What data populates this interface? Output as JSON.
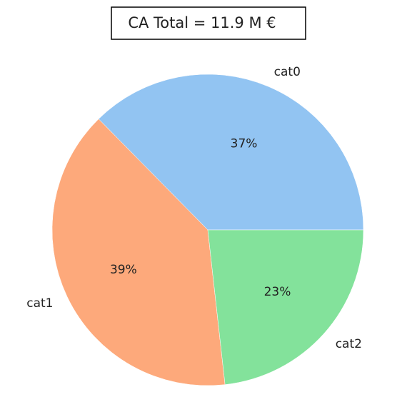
{
  "chart_data": {
    "type": "pie",
    "title": "CA Total = 11.9 M €",
    "categories": [
      "cat0",
      "cat1",
      "cat2"
    ],
    "values": [
      37,
      39,
      23
    ],
    "value_labels": [
      "37%",
      "39%",
      "23%"
    ],
    "colors": [
      "#92c4f2",
      "#fda97b",
      "#83e29b"
    ]
  }
}
